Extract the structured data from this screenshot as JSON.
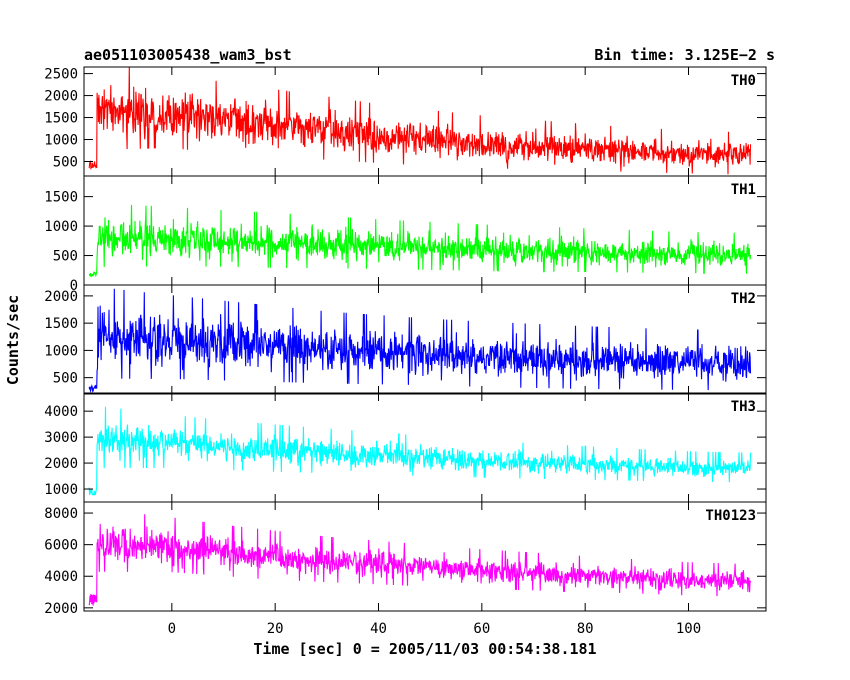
{
  "chart_data": {
    "type": "line",
    "title": "ae051103005438_wam3_bst",
    "bin_time_label": "Bin time: 3.125E−2 s",
    "xlabel": "Time [sec] 0 = 2005/11/03 00:54:38.181",
    "ylabel": "Counts/sec",
    "xlim": [
      -17,
      115
    ],
    "x_ticks": [
      0,
      20,
      40,
      60,
      80,
      100
    ],
    "x_tick_labels": [
      "0",
      "20",
      "40",
      "60",
      "80",
      "100"
    ],
    "data_start": -16,
    "data_end": 112,
    "grid": false,
    "panels": [
      {
        "name": "TH0",
        "color": "#ff0000",
        "ylim": [
          170,
          2650
        ],
        "y_ticks": [
          500,
          1000,
          1500,
          2000,
          2500
        ],
        "pre_level": 420,
        "profile": {
          "t": [
            -15,
            -14,
            0,
            10,
            20,
            30,
            40,
            50,
            60,
            70,
            80,
            90,
            100,
            112
          ],
          "mean": [
            1500,
            1700,
            1600,
            1420,
            1300,
            1200,
            1080,
            980,
            900,
            840,
            780,
            720,
            680,
            640
          ],
          "amp": [
            800,
            850,
            720,
            680,
            650,
            600,
            560,
            530,
            500,
            470,
            440,
            420,
            410,
            400
          ]
        }
      },
      {
        "name": "TH1",
        "color": "#00ff00",
        "ylim": [
          0,
          1850
        ],
        "y_ticks": [
          0,
          500,
          1000,
          1500
        ],
        "pre_level": 180,
        "profile": {
          "t": [
            -15,
            -14,
            0,
            10,
            20,
            30,
            40,
            50,
            60,
            70,
            80,
            90,
            100,
            112
          ],
          "mean": [
            700,
            800,
            780,
            750,
            720,
            690,
            660,
            630,
            600,
            580,
            560,
            540,
            520,
            510
          ],
          "amp": [
            420,
            450,
            420,
            400,
            390,
            370,
            350,
            340,
            330,
            320,
            310,
            300,
            290,
            290
          ]
        }
      },
      {
        "name": "TH2",
        "color": "#0000ff",
        "ylim": [
          200,
          2200
        ],
        "y_ticks": [
          500,
          1000,
          1500,
          2000
        ],
        "pre_level": 300,
        "profile": {
          "t": [
            -15,
            -14,
            0,
            10,
            20,
            30,
            40,
            50,
            60,
            70,
            80,
            90,
            100,
            112
          ],
          "mean": [
            1100,
            1250,
            1180,
            1120,
            1060,
            1000,
            960,
            920,
            880,
            850,
            820,
            800,
            780,
            760
          ],
          "amp": [
            650,
            700,
            640,
            610,
            580,
            550,
            530,
            510,
            500,
            490,
            480,
            470,
            460,
            450
          ]
        }
      },
      {
        "name": "TH3",
        "color": "#00ffff",
        "ylim": [
          500,
          4700
        ],
        "y_ticks": [
          1000,
          2000,
          3000,
          4000
        ],
        "pre_level": 900,
        "profile": {
          "t": [
            -15,
            -14,
            0,
            10,
            20,
            30,
            40,
            50,
            60,
            70,
            80,
            90,
            100,
            112
          ],
          "mean": [
            2500,
            2900,
            2750,
            2620,
            2500,
            2400,
            2300,
            2200,
            2100,
            2020,
            1950,
            1880,
            1820,
            1780
          ],
          "amp": [
            900,
            1000,
            850,
            800,
            760,
            720,
            680,
            640,
            600,
            570,
            540,
            510,
            490,
            480
          ]
        }
      },
      {
        "name": "TH0123",
        "color": "#ff00ff",
        "ylim": [
          1800,
          8700
        ],
        "y_ticks": [
          2000,
          4000,
          6000,
          8000
        ],
        "pre_level": 2400,
        "profile": {
          "t": [
            -15,
            -14,
            0,
            10,
            20,
            30,
            40,
            50,
            60,
            70,
            80,
            90,
            100,
            112
          ],
          "mean": [
            5600,
            6100,
            5850,
            5500,
            5200,
            4950,
            4750,
            4550,
            4350,
            4200,
            4050,
            3900,
            3750,
            3650
          ],
          "amp": [
            1500,
            1650,
            1450,
            1350,
            1300,
            1200,
            1150,
            1100,
            1050,
            1000,
            950,
            900,
            880,
            860
          ]
        }
      }
    ]
  }
}
